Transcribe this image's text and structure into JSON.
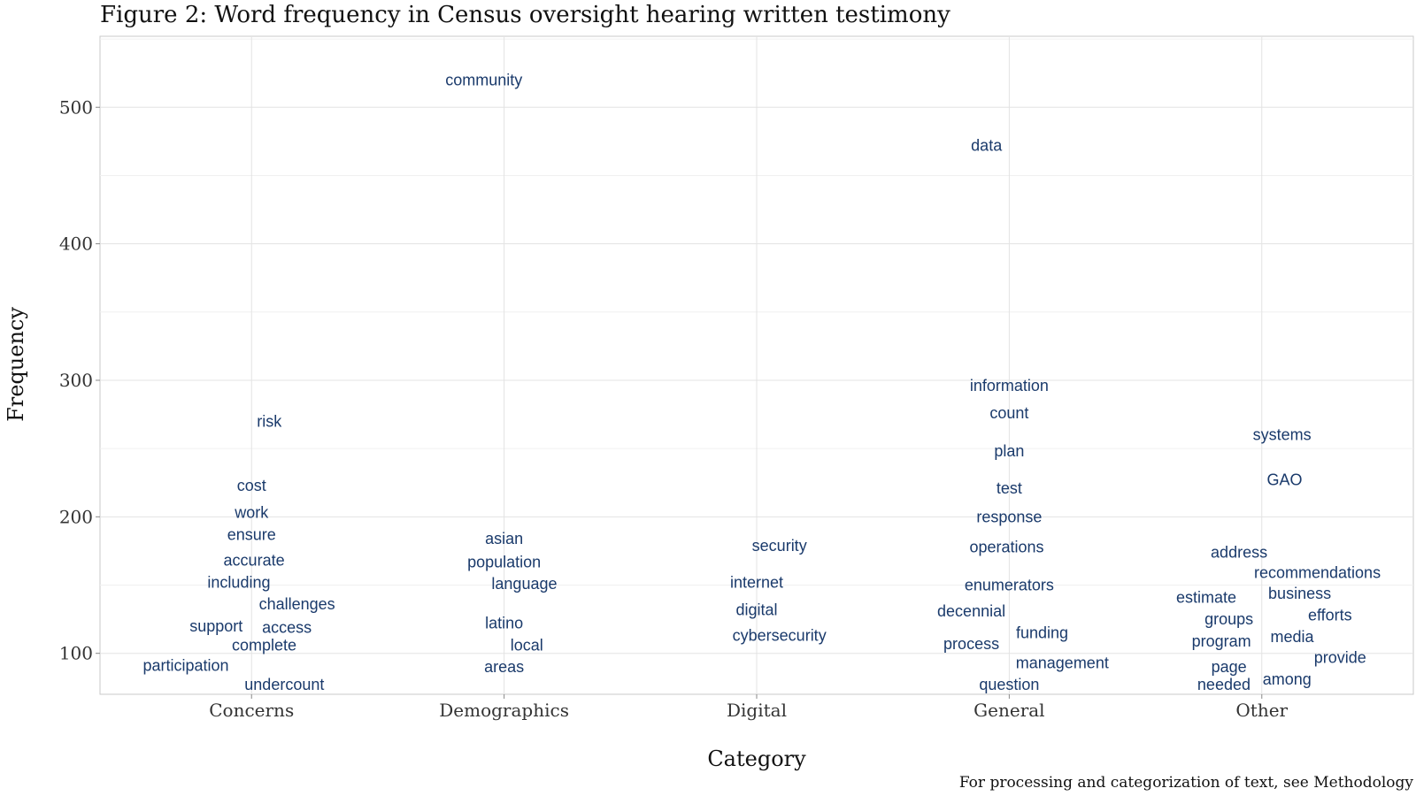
{
  "chart_data": {
    "type": "scatter",
    "title": "Figure 2: Word frequency in Census oversight hearing written testimony",
    "xlabel": "Category",
    "ylabel": "Frequency",
    "caption": "For processing and categorization of text, see Methodology",
    "categories": [
      "Concerns",
      "Demographics",
      "Digital",
      "General",
      "Other"
    ],
    "y_ticks": [
      100,
      200,
      300,
      400,
      500
    ],
    "ylim": [
      70,
      552
    ],
    "grid": true,
    "label_color": "#1a3a6b",
    "points": [
      {
        "word": "risk",
        "category": "Concerns",
        "x_offset": 0.07,
        "y": 270
      },
      {
        "word": "cost",
        "category": "Concerns",
        "x_offset": 0.0,
        "y": 223
      },
      {
        "word": "work",
        "category": "Concerns",
        "x_offset": 0.0,
        "y": 203
      },
      {
        "word": "ensure",
        "category": "Concerns",
        "x_offset": 0.0,
        "y": 187
      },
      {
        "word": "accurate",
        "category": "Concerns",
        "x_offset": 0.01,
        "y": 168
      },
      {
        "word": "including",
        "category": "Concerns",
        "x_offset": -0.05,
        "y": 152
      },
      {
        "word": "challenges",
        "category": "Concerns",
        "x_offset": 0.18,
        "y": 136
      },
      {
        "word": "support",
        "category": "Concerns",
        "x_offset": -0.14,
        "y": 120
      },
      {
        "word": "access",
        "category": "Concerns",
        "x_offset": 0.14,
        "y": 119
      },
      {
        "word": "complete",
        "category": "Concerns",
        "x_offset": 0.05,
        "y": 106
      },
      {
        "word": "participation",
        "category": "Concerns",
        "x_offset": -0.26,
        "y": 91
      },
      {
        "word": "undercount",
        "category": "Concerns",
        "x_offset": 0.13,
        "y": 77
      },
      {
        "word": "community",
        "category": "Demographics",
        "x_offset": -0.08,
        "y": 520
      },
      {
        "word": "asian",
        "category": "Demographics",
        "x_offset": 0.0,
        "y": 184
      },
      {
        "word": "population",
        "category": "Demographics",
        "x_offset": 0.0,
        "y": 167
      },
      {
        "word": "language",
        "category": "Demographics",
        "x_offset": 0.08,
        "y": 151
      },
      {
        "word": "latino",
        "category": "Demographics",
        "x_offset": 0.0,
        "y": 122
      },
      {
        "word": "local",
        "category": "Demographics",
        "x_offset": 0.09,
        "y": 106
      },
      {
        "word": "areas",
        "category": "Demographics",
        "x_offset": 0.0,
        "y": 90
      },
      {
        "word": "security",
        "category": "Digital",
        "x_offset": 0.09,
        "y": 179
      },
      {
        "word": "internet",
        "category": "Digital",
        "x_offset": 0.0,
        "y": 152
      },
      {
        "word": "digital",
        "category": "Digital",
        "x_offset": 0.0,
        "y": 132
      },
      {
        "word": "cybersecurity",
        "category": "Digital",
        "x_offset": 0.09,
        "y": 113
      },
      {
        "word": "data",
        "category": "General",
        "x_offset": -0.09,
        "y": 472
      },
      {
        "word": "information",
        "category": "General",
        "x_offset": 0.0,
        "y": 296
      },
      {
        "word": "count",
        "category": "General",
        "x_offset": 0.0,
        "y": 276
      },
      {
        "word": "plan",
        "category": "General",
        "x_offset": 0.0,
        "y": 248
      },
      {
        "word": "test",
        "category": "General",
        "x_offset": 0.0,
        "y": 221
      },
      {
        "word": "response",
        "category": "General",
        "x_offset": 0.0,
        "y": 200
      },
      {
        "word": "operations",
        "category": "General",
        "x_offset": -0.01,
        "y": 178
      },
      {
        "word": "enumerators",
        "category": "General",
        "x_offset": 0.0,
        "y": 150
      },
      {
        "word": "decennial",
        "category": "General",
        "x_offset": -0.15,
        "y": 131
      },
      {
        "word": "funding",
        "category": "General",
        "x_offset": 0.13,
        "y": 115
      },
      {
        "word": "process",
        "category": "General",
        "x_offset": -0.15,
        "y": 107
      },
      {
        "word": "management",
        "category": "General",
        "x_offset": 0.21,
        "y": 93
      },
      {
        "word": "question",
        "category": "General",
        "x_offset": 0.0,
        "y": 77
      },
      {
        "word": "systems",
        "category": "Other",
        "x_offset": 0.08,
        "y": 260
      },
      {
        "word": "GAO",
        "category": "Other",
        "x_offset": 0.09,
        "y": 227
      },
      {
        "word": "address",
        "category": "Other",
        "x_offset": -0.09,
        "y": 174
      },
      {
        "word": "recommendations",
        "category": "Other",
        "x_offset": 0.22,
        "y": 159
      },
      {
        "word": "business",
        "category": "Other",
        "x_offset": 0.15,
        "y": 144
      },
      {
        "word": "estimate",
        "category": "Other",
        "x_offset": -0.22,
        "y": 141
      },
      {
        "word": "groups",
        "category": "Other",
        "x_offset": -0.13,
        "y": 125
      },
      {
        "word": "efforts",
        "category": "Other",
        "x_offset": 0.27,
        "y": 128
      },
      {
        "word": "program",
        "category": "Other",
        "x_offset": -0.16,
        "y": 109
      },
      {
        "word": "media",
        "category": "Other",
        "x_offset": 0.12,
        "y": 112
      },
      {
        "word": "provide",
        "category": "Other",
        "x_offset": 0.31,
        "y": 97
      },
      {
        "word": "page",
        "category": "Other",
        "x_offset": -0.13,
        "y": 90
      },
      {
        "word": "among",
        "category": "Other",
        "x_offset": 0.1,
        "y": 81
      },
      {
        "word": "needed",
        "category": "Other",
        "x_offset": -0.15,
        "y": 77
      }
    ]
  }
}
